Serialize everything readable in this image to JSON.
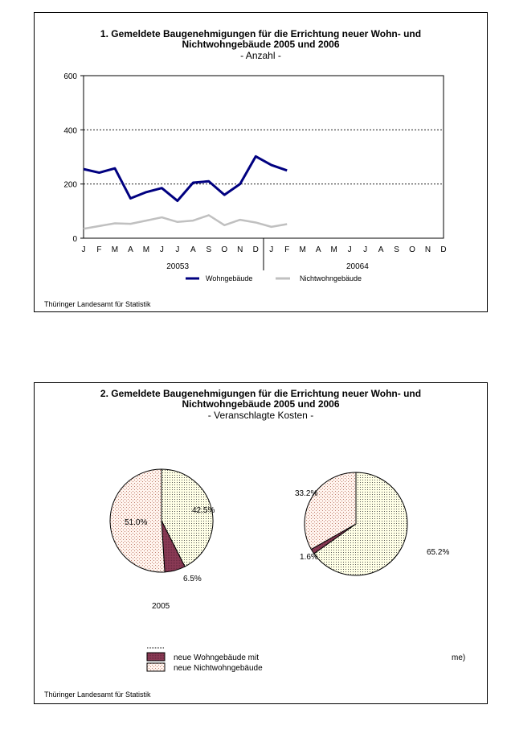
{
  "chart1": {
    "title_line1": "1. Gemeldete Baugenehmigungen für die Errichtung neuer Wohn- und",
    "title_line2": "Nichtwohngebäude 2005 und 2006",
    "subtitle": "- Anzahl -",
    "source": "Thüringer Landesamt für Statistik"
  },
  "chart2": {
    "title_line1": "2. Gemeldete Baugenehmigungen für die Errichtung neuer Wohn- und",
    "title_line2": "Nichtwohngebäude 2005 und 2006",
    "subtitle": "- Veranschlagte Kosten -",
    "source": "Thüringer Landesamt für Statistik",
    "pie1_label": "2005",
    "legend_item1": "neue Wohngebäude mit",
    "legend_item2": "neue Nichtwohngebäude",
    "legend_fragment_right": "me)"
  },
  "chart_data": [
    {
      "type": "line",
      "title": "1. Gemeldete Baugenehmigungen für die Errichtung neuer Wohn- und Nichtwohngebäude 2005 und 2006",
      "subtitle": "- Anzahl -",
      "categories": [
        "J",
        "F",
        "M",
        "A",
        "M",
        "J",
        "J",
        "A",
        "S",
        "O",
        "N",
        "D",
        "J",
        "F",
        "M",
        "A",
        "M",
        "J",
        "J",
        "A",
        "S",
        "O",
        "N",
        "D"
      ],
      "year_labels": [
        "20053",
        "20064"
      ],
      "ylim": [
        0,
        600
      ],
      "yticks": [
        0,
        200,
        400,
        600
      ],
      "grid": "dashed horizontal at 200 and 400",
      "legend_position": "bottom",
      "series": [
        {
          "name": "Wohngebäude",
          "color": "#000080",
          "values": [
            255,
            242,
            258,
            147,
            170,
            185,
            138,
            205,
            210,
            160,
            200,
            302,
            270,
            250,
            null,
            null,
            null,
            null,
            null,
            null,
            null,
            null,
            null,
            null
          ]
        },
        {
          "name": "Nichtwohngebäude",
          "color": "#c0c0c0",
          "values": [
            35,
            45,
            55,
            53,
            65,
            77,
            60,
            65,
            85,
            48,
            68,
            58,
            42,
            52,
            null,
            null,
            null,
            null,
            null,
            null,
            null,
            null,
            null,
            null
          ]
        }
      ]
    },
    {
      "type": "pie",
      "title": "2. Gemeldete Baugenehmigungen für die Errichtung neuer Wohn- und Nichtwohngebäude 2005 und 2006",
      "subtitle": "- Veranschlagte Kosten -",
      "pies": [
        {
          "label": "2005",
          "slices": [
            {
              "label": "42.5%",
              "value": 42.5,
              "pattern": "dotted-yellow"
            },
            {
              "label": "6.5%",
              "value": 6.5,
              "pattern": "maroon"
            },
            {
              "label": "51.0%",
              "value": 51.0,
              "pattern": "dotted-pink"
            }
          ]
        },
        {
          "label": "",
          "slices": [
            {
              "label": "65.2%",
              "value": 65.2,
              "pattern": "dotted-yellow"
            },
            {
              "label": "1.6%",
              "value": 1.6,
              "pattern": "maroon"
            },
            {
              "label": "33.2%",
              "value": 33.2,
              "pattern": "dotted-pink"
            }
          ]
        }
      ],
      "legend": [
        "neue Wohngebäude mit",
        "neue Nichtwohngebäude"
      ]
    }
  ]
}
